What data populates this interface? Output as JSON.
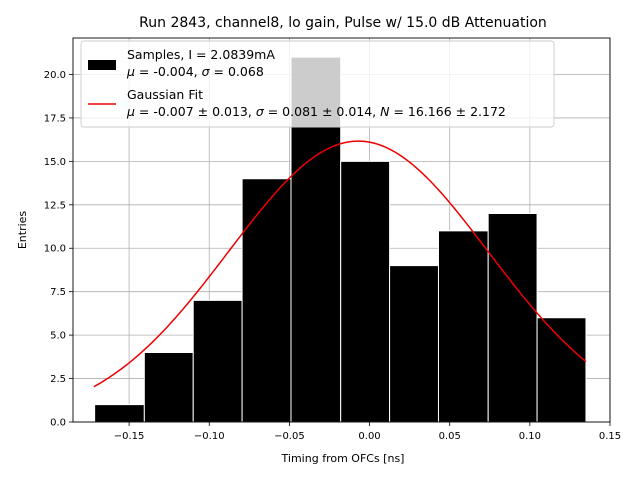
{
  "chart_data": {
    "type": "bar",
    "title": "Run 2843, channel8, lo gain, Pulse w/ 15.0 dB Attenuation",
    "xlabel": "Timing from OFCs [ns]",
    "ylabel": "Entries",
    "xlim": [
      -0.185,
      0.15
    ],
    "ylim": [
      0,
      22.1
    ],
    "xticks": [
      -0.15,
      -0.1,
      -0.05,
      0.0,
      0.05,
      0.1,
      0.15
    ],
    "xtick_labels": [
      "−0.15",
      "−0.10",
      "−0.05",
      "0.00",
      "0.05",
      "0.10",
      "0.15"
    ],
    "yticks": [
      0,
      2.5,
      5,
      7.5,
      10,
      12.5,
      15,
      17.5,
      20
    ],
    "ytick_labels": [
      "0.0",
      "2.5",
      "5.0",
      "7.5",
      "10.0",
      "12.5",
      "15.0",
      "17.5",
      "20.0"
    ],
    "grid": true,
    "legend_position": "top-left",
    "histogram": {
      "name": "Samples, I = 2.0839mA",
      "stats_line": "μ = -0.004, σ = 0.068",
      "color": "#000000",
      "bin_edges": [
        -0.1715,
        -0.1405,
        -0.11,
        -0.0795,
        -0.049,
        -0.018,
        0.0125,
        0.043,
        0.074,
        0.1045,
        0.135
      ],
      "values": [
        1,
        4,
        7,
        14,
        21,
        15,
        9,
        11,
        12,
        6
      ]
    },
    "fit": {
      "name": "Gaussian Fit",
      "params_line": "μ = -0.007 ± 0.013, σ = 0.081 ± 0.014, N = 16.166 ± 2.172",
      "color": "#ee0000",
      "mu": -0.007,
      "sigma": 0.081,
      "N": 16.166,
      "x_range": [
        -0.172,
        0.135
      ]
    }
  },
  "legend": {
    "entry1_line1": "Samples, I = 2.0839mA",
    "entry1_mu_sym": "μ",
    "entry1_mu_val": " = -0.004, ",
    "entry1_sigma_sym": "σ",
    "entry1_sigma_val": " = 0.068",
    "entry2_line1": "Gaussian Fit",
    "entry2_mu_sym": "μ",
    "entry2_mu_val": " = -0.007 ± 0.013, ",
    "entry2_sigma_sym": "σ",
    "entry2_sigma_val": " = 0.081 ± 0.014, ",
    "entry2_n_sym": "N",
    "entry2_n_val": " = 16.166 ± 2.172"
  }
}
